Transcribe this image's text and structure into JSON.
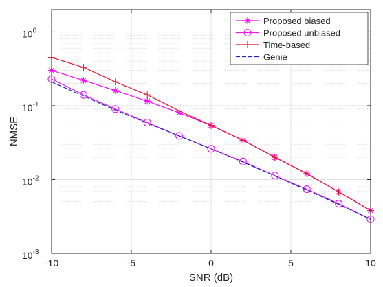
{
  "chart_data": {
    "type": "line",
    "title": "",
    "xlabel": "SNR (dB)",
    "ylabel": "NMSE",
    "xlim": [
      -10,
      10
    ],
    "ylim": [
      0.001,
      2
    ],
    "yscale": "log",
    "grid": true,
    "minor_grid": true,
    "legend_location": "top-right",
    "x_ticks": [
      -10,
      -5,
      0,
      5,
      10
    ],
    "x_tick_labels": [
      "-10",
      "-5",
      "0",
      "5",
      "10"
    ],
    "y_ticks": [
      0.001,
      0.01,
      0.1,
      1
    ],
    "y_tick_labels": [
      {
        "base": "10",
        "exp": "-3"
      },
      {
        "base": "10",
        "exp": "-2"
      },
      {
        "base": "10",
        "exp": "-1"
      },
      {
        "base": "10",
        "exp": "0"
      }
    ],
    "series": [
      {
        "name": "Proposed biased",
        "color": "#ff00ff",
        "marker": "asterisk",
        "line_style": "solid",
        "x": [
          -10,
          -8,
          -6,
          -4,
          -2,
          0,
          2,
          4,
          6,
          8,
          10
        ],
        "values": [
          0.3,
          0.22,
          0.16,
          0.115,
          0.08,
          0.054,
          0.034,
          0.02,
          0.012,
          0.0068,
          0.0038
        ]
      },
      {
        "name": "Proposed unbiased",
        "color": "#e61ee6",
        "marker": "circle",
        "line_style": "solid",
        "x": [
          -10,
          -8,
          -6,
          -4,
          -2,
          0,
          2,
          4,
          6,
          8,
          10
        ],
        "values": [
          0.23,
          0.14,
          0.09,
          0.059,
          0.039,
          0.026,
          0.0175,
          0.0113,
          0.0074,
          0.0047,
          0.0029
        ]
      },
      {
        "name": "Time-based",
        "color": "#e8112d",
        "marker": "plus",
        "line_style": "solid",
        "x": [
          -10,
          -8,
          -6,
          -4,
          -2,
          0,
          2,
          4,
          6,
          8,
          10
        ],
        "values": [
          0.45,
          0.33,
          0.21,
          0.14,
          0.085,
          0.054,
          0.034,
          0.02,
          0.012,
          0.0068,
          0.0038
        ]
      },
      {
        "name": "Genie",
        "color": "#1f1fcc",
        "marker": "none",
        "line_style": "dashed",
        "x": [
          -10,
          -8,
          -6,
          -4,
          -2,
          0,
          2,
          4,
          6,
          8,
          10
        ],
        "values": [
          0.21,
          0.135,
          0.087,
          0.058,
          0.039,
          0.026,
          0.0172,
          0.0112,
          0.0072,
          0.0046,
          0.0029
        ]
      }
    ]
  }
}
